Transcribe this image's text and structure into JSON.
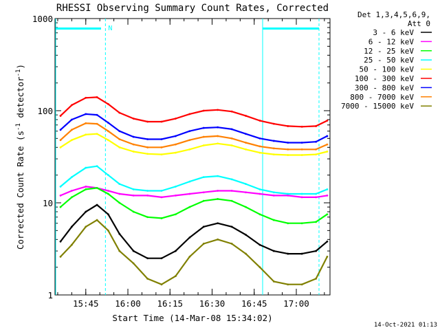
{
  "chart_data": {
    "type": "line",
    "title": "RHESSI Observing Summary Count Rates, Corrected",
    "xlabel": "Start Time (14-Mar-08 15:34:02)",
    "ylabel": "Corrected Count Rate (s",
    "ylabel_sup1": "-1",
    "ylabel_mid": " detector",
    "ylabel_sup2": "-1",
    "ylabel_end": ")",
    "y_scale": "log",
    "ylim": [
      1,
      1000
    ],
    "y_ticks": [
      {
        "value": 1,
        "label": "1"
      },
      {
        "value": 10,
        "label": "10"
      },
      {
        "value": 100,
        "label": "100"
      },
      {
        "value": 1000,
        "label": "1000"
      }
    ],
    "xlim": [
      "15:34:02",
      "17:12:00"
    ],
    "x_ticks": [
      {
        "value": "15:45",
        "label": "15:45"
      },
      {
        "value": "16:00",
        "label": "16:00"
      },
      {
        "value": "16:15",
        "label": "16:15"
      },
      {
        "value": "16:30",
        "label": "16:30"
      },
      {
        "value": "16:45",
        "label": "16:45"
      },
      {
        "value": "17:00",
        "label": "17:00"
      }
    ],
    "legend_header": [
      "Det 1,3,4,5,6,9,",
      "Att 0"
    ],
    "legend_position": "right",
    "series": [
      {
        "name": "3 - 6 keV",
        "color": "#000000",
        "x": [
          "15:36",
          "15:40",
          "15:45",
          "15:49",
          "15:53",
          "15:57",
          "16:02",
          "16:07",
          "16:12",
          "16:17",
          "16:22",
          "16:27",
          "16:32",
          "16:37",
          "16:42",
          "16:47",
          "16:52",
          "16:57",
          "17:02",
          "17:07",
          "17:11"
        ],
        "values": [
          3.8,
          5.5,
          8.0,
          9.5,
          7.5,
          4.6,
          3.0,
          2.5,
          2.5,
          3.0,
          4.2,
          5.5,
          6.0,
          5.5,
          4.5,
          3.5,
          3.0,
          2.8,
          2.8,
          3.0,
          3.8
        ]
      },
      {
        "name": "6 - 12 keV",
        "color": "#ff00ff",
        "x": [
          "15:36",
          "15:40",
          "15:45",
          "15:49",
          "15:53",
          "15:57",
          "16:02",
          "16:07",
          "16:12",
          "16:17",
          "16:22",
          "16:27",
          "16:32",
          "16:37",
          "16:42",
          "16:47",
          "16:52",
          "16:57",
          "17:02",
          "17:07",
          "17:11"
        ],
        "values": [
          12,
          13.5,
          15,
          14.5,
          13.5,
          12.5,
          12,
          12,
          11.5,
          12,
          12.5,
          13,
          13.5,
          13.5,
          13,
          12.5,
          12,
          12,
          11.5,
          11.5,
          12
        ]
      },
      {
        "name": "12 - 25 keV",
        "color": "#00ff00",
        "x": [
          "15:36",
          "15:40",
          "15:45",
          "15:49",
          "15:53",
          "15:57",
          "16:02",
          "16:07",
          "16:12",
          "16:17",
          "16:22",
          "16:27",
          "16:32",
          "16:37",
          "16:42",
          "16:47",
          "16:52",
          "16:57",
          "17:02",
          "17:07",
          "17:11"
        ],
        "values": [
          9,
          11.5,
          14,
          14.5,
          12.5,
          10,
          8,
          7,
          6.8,
          7.5,
          9,
          10.5,
          11,
          10.5,
          9,
          7.5,
          6.5,
          6,
          6,
          6.2,
          7.5
        ]
      },
      {
        "name": "25 - 50 keV",
        "color": "#00ffff",
        "x": [
          "15:36",
          "15:40",
          "15:45",
          "15:49",
          "15:53",
          "15:57",
          "16:02",
          "16:07",
          "16:12",
          "16:17",
          "16:22",
          "16:27",
          "16:32",
          "16:37",
          "16:42",
          "16:47",
          "16:52",
          "16:57",
          "17:02",
          "17:07",
          "17:11"
        ],
        "values": [
          15,
          19,
          24,
          25,
          20,
          16,
          14,
          13.5,
          13.5,
          15,
          17,
          19,
          19.5,
          18,
          16,
          14,
          13,
          12.5,
          12.5,
          12.5,
          14
        ]
      },
      {
        "name": "50 - 100 keV",
        "color": "#ffff00",
        "x": [
          "15:36",
          "15:40",
          "15:45",
          "15:49",
          "15:53",
          "15:57",
          "16:02",
          "16:07",
          "16:12",
          "16:17",
          "16:22",
          "16:27",
          "16:32",
          "16:37",
          "16:42",
          "16:47",
          "16:52",
          "16:57",
          "17:02",
          "17:07",
          "17:11"
        ],
        "values": [
          40,
          48,
          55,
          56,
          48,
          40,
          36,
          34,
          33.5,
          35,
          38,
          42,
          44,
          42,
          38,
          35,
          33.5,
          33,
          33,
          33.5,
          36
        ]
      },
      {
        "name": "100 - 300 keV",
        "color": "#ff0000",
        "x": [
          "15:36",
          "15:40",
          "15:45",
          "15:49",
          "15:53",
          "15:57",
          "16:02",
          "16:07",
          "16:12",
          "16:17",
          "16:22",
          "16:27",
          "16:32",
          "16:37",
          "16:42",
          "16:47",
          "16:52",
          "16:57",
          "17:02",
          "17:07",
          "17:11"
        ],
        "values": [
          88,
          115,
          138,
          140,
          118,
          95,
          82,
          76,
          76,
          82,
          92,
          100,
          102,
          98,
          88,
          78,
          72,
          68,
          67,
          68,
          78
        ]
      },
      {
        "name": "300 - 800 keV",
        "color": "#0000ff",
        "x": [
          "15:36",
          "15:40",
          "15:45",
          "15:49",
          "15:53",
          "15:57",
          "16:02",
          "16:07",
          "16:12",
          "16:17",
          "16:22",
          "16:27",
          "16:32",
          "16:37",
          "16:42",
          "16:47",
          "16:52",
          "16:57",
          "17:02",
          "17:07",
          "17:11"
        ],
        "values": [
          62,
          80,
          92,
          90,
          74,
          60,
          52,
          49,
          49,
          53,
          60,
          65,
          66,
          63,
          56,
          50,
          47,
          45,
          45,
          46,
          53
        ]
      },
      {
        "name": "800 - 7000 keV",
        "color": "#ff8000",
        "x": [
          "15:36",
          "15:40",
          "15:45",
          "15:49",
          "15:53",
          "15:57",
          "16:02",
          "16:07",
          "16:12",
          "16:17",
          "16:22",
          "16:27",
          "16:32",
          "16:37",
          "16:42",
          "16:47",
          "16:52",
          "16:57",
          "17:02",
          "17:07",
          "17:11"
        ],
        "values": [
          48,
          62,
          73,
          72,
          60,
          49,
          43,
          40,
          40,
          43,
          48,
          52,
          53,
          50,
          45,
          41,
          39,
          38,
          38,
          38,
          43
        ]
      },
      {
        "name": "7000 - 15000 keV",
        "color": "#808000",
        "x": [
          "15:36",
          "15:40",
          "15:45",
          "15:49",
          "15:53",
          "15:57",
          "16:02",
          "16:07",
          "16:12",
          "16:17",
          "16:22",
          "16:27",
          "16:32",
          "16:37",
          "16:42",
          "16:47",
          "16:52",
          "16:57",
          "17:02",
          "17:07",
          "17:11"
        ],
        "values": [
          2.6,
          3.5,
          5.5,
          6.5,
          5.0,
          3.0,
          2.2,
          1.5,
          1.3,
          1.6,
          2.6,
          3.6,
          4.0,
          3.6,
          2.8,
          2.0,
          1.4,
          1.3,
          1.3,
          1.5,
          2.6
        ]
      }
    ],
    "annotations": [
      {
        "label": "N",
        "color": "#00ffff"
      }
    ],
    "footer": "14-Oct-2021 01:13"
  }
}
